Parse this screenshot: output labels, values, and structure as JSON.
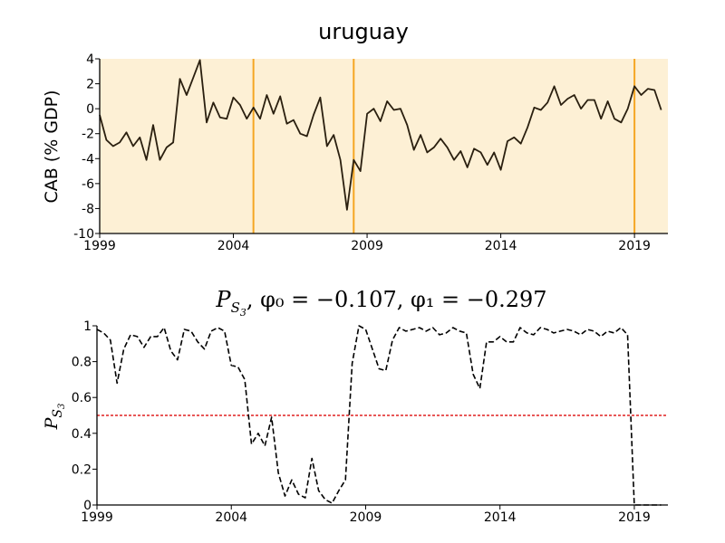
{
  "colors": {
    "background": "#ffffff",
    "regime_fill": "#fdf0d5",
    "break_line": "#f5a623",
    "series_line": "#2a1f0f",
    "prob_line": "#000000",
    "threshold_line": "#e02020"
  },
  "chart_data": [
    {
      "type": "line",
      "title": "uruguay",
      "ylabel": "CAB (% GDP)",
      "xlim": [
        1999,
        2020.25
      ],
      "ylim": [
        -10,
        4
      ],
      "xticks": [
        1999,
        2004,
        2009,
        2014,
        2019
      ],
      "yticks": [
        -10,
        -8,
        -6,
        -4,
        -2,
        0,
        2,
        4
      ],
      "grid": false,
      "shaded_regions": [
        [
          1999,
          2020.25
        ]
      ],
      "vertical_lines": [
        2004.75,
        2008.5,
        2019.0
      ],
      "series": [
        {
          "x": [
            1999.0,
            1999.25,
            1999.5,
            1999.75,
            2000.0,
            2000.25,
            2000.5,
            2000.75,
            2001.0,
            2001.25,
            2001.5,
            2001.75,
            2002.0,
            2002.25,
            2002.5,
            2002.75,
            2003.0,
            2003.25,
            2003.5,
            2003.75,
            2004.0,
            2004.25,
            2004.5,
            2004.75,
            2005.0,
            2005.25,
            2005.5,
            2005.75,
            2006.0,
            2006.25,
            2006.5,
            2006.75,
            2007.0,
            2007.25,
            2007.5,
            2007.75,
            2008.0,
            2008.25,
            2008.5,
            2008.75,
            2009.0,
            2009.25,
            2009.5,
            2009.75,
            2010.0,
            2010.25,
            2010.5,
            2010.75,
            2011.0,
            2011.25,
            2011.5,
            2011.75,
            2012.0,
            2012.25,
            2012.5,
            2012.75,
            2013.0,
            2013.25,
            2013.5,
            2013.75,
            2014.0,
            2014.25,
            2014.5,
            2014.75,
            2015.0,
            2015.25,
            2015.5,
            2015.75,
            2016.0,
            2016.25,
            2016.5,
            2016.75,
            2017.0,
            2017.25,
            2017.5,
            2017.75,
            2018.0,
            2018.25,
            2018.5,
            2018.75,
            2019.0,
            2019.25,
            2019.5,
            2019.75,
            2020.0
          ],
          "values": [
            -0.5,
            -2.5,
            -3.0,
            -2.7,
            -1.9,
            -3.0,
            -2.3,
            -4.1,
            -1.3,
            -4.1,
            -3.1,
            -2.7,
            2.4,
            1.1,
            2.5,
            3.9,
            -1.1,
            0.5,
            -0.7,
            -0.8,
            0.9,
            0.3,
            -0.8,
            0.1,
            -0.8,
            1.1,
            -0.4,
            1.0,
            -1.2,
            -0.9,
            -2.0,
            -2.2,
            -0.5,
            0.9,
            -3.0,
            -2.1,
            -4.1,
            -8.1,
            -4.1,
            -5.0,
            -0.4,
            0.0,
            -1.0,
            0.6,
            -0.1,
            0.0,
            -1.3,
            -3.3,
            -2.1,
            -3.5,
            -3.1,
            -2.4,
            -3.1,
            -4.1,
            -3.4,
            -4.7,
            -3.2,
            -3.5,
            -4.5,
            -3.5,
            -4.9,
            -2.6,
            -2.3,
            -2.8,
            -1.5,
            0.1,
            -0.1,
            0.5,
            1.8,
            0.3,
            0.8,
            1.1,
            0.0,
            0.7,
            0.7,
            -0.8,
            0.6,
            -0.8,
            -1.1,
            0.0,
            1.8,
            1.1,
            1.6,
            1.5,
            -0.1
          ]
        }
      ]
    },
    {
      "type": "line",
      "title_parts": {
        "p": "P",
        "sub": "S",
        "subsub": "3",
        "rest": ", φ₀ = −0.107, φ₁ = −0.297"
      },
      "ylabel_parts": {
        "p": "P",
        "sub": "S",
        "subsub": "3"
      },
      "xlim": [
        1999,
        2020.25
      ],
      "ylim": [
        0,
        1
      ],
      "xticks": [
        1999,
        2004,
        2009,
        2014,
        2019
      ],
      "yticks": [
        0,
        0.2,
        0.4,
        0.6,
        0.8,
        1
      ],
      "ytick_labels": [
        "0",
        "0.2",
        "0.4",
        "0.6",
        "0.8",
        "1"
      ],
      "grid": false,
      "threshold": 0.5,
      "series": [
        {
          "x": [
            1999.0,
            1999.25,
            1999.5,
            1999.75,
            2000.0,
            2000.25,
            2000.5,
            2000.75,
            2001.0,
            2001.25,
            2001.5,
            2001.75,
            2002.0,
            2002.25,
            2002.5,
            2002.75,
            2003.0,
            2003.25,
            2003.5,
            2003.75,
            2004.0,
            2004.25,
            2004.5,
            2004.75,
            2005.0,
            2005.25,
            2005.5,
            2005.75,
            2006.0,
            2006.25,
            2006.5,
            2006.75,
            2007.0,
            2007.25,
            2007.5,
            2007.75,
            2008.0,
            2008.25,
            2008.5,
            2008.75,
            2009.0,
            2009.25,
            2009.5,
            2009.75,
            2010.0,
            2010.25,
            2010.5,
            2010.75,
            2011.0,
            2011.25,
            2011.5,
            2011.75,
            2012.0,
            2012.25,
            2012.5,
            2012.75,
            2013.0,
            2013.25,
            2013.5,
            2013.75,
            2014.0,
            2014.25,
            2014.5,
            2014.75,
            2015.0,
            2015.25,
            2015.5,
            2015.75,
            2016.0,
            2016.25,
            2016.5,
            2016.75,
            2017.0,
            2017.25,
            2017.5,
            2017.75,
            2018.0,
            2018.25,
            2018.5,
            2018.75,
            2019.0,
            2019.25,
            2019.5,
            2019.75,
            2020.0
          ],
          "values": [
            0.98,
            0.96,
            0.92,
            0.68,
            0.87,
            0.95,
            0.94,
            0.88,
            0.94,
            0.94,
            0.99,
            0.86,
            0.81,
            0.98,
            0.97,
            0.91,
            0.87,
            0.97,
            0.99,
            0.97,
            0.78,
            0.77,
            0.7,
            0.34,
            0.4,
            0.33,
            0.49,
            0.18,
            0.05,
            0.14,
            0.06,
            0.04,
            0.26,
            0.08,
            0.03,
            0.01,
            0.08,
            0.14,
            0.79,
            1.0,
            0.98,
            0.87,
            0.76,
            0.75,
            0.92,
            0.99,
            0.97,
            0.98,
            0.99,
            0.97,
            0.99,
            0.95,
            0.96,
            0.99,
            0.97,
            0.96,
            0.73,
            0.65,
            0.91,
            0.91,
            0.94,
            0.91,
            0.91,
            0.99,
            0.96,
            0.95,
            0.99,
            0.98,
            0.96,
            0.97,
            0.98,
            0.97,
            0.95,
            0.98,
            0.97,
            0.94,
            0.97,
            0.96,
            0.99,
            0.95,
            0.0,
            0.0,
            0.0,
            0.0,
            0.0
          ]
        }
      ]
    }
  ]
}
